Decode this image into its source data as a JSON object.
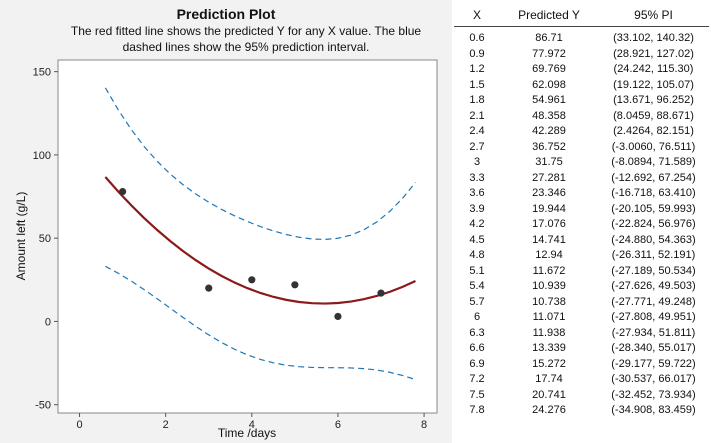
{
  "chart_data": {
    "type": "scatter",
    "title": "Prediction Plot",
    "subtitle_lines": [
      "The red fitted line shows the predicted Y for any X value. The blue",
      "dashed lines show the 95% prediction interval."
    ],
    "xlabel": "Time /days",
    "ylabel": "Amount left (g/L)",
    "xlim": [
      -0.5,
      8.3
    ],
    "ylim": [
      -55,
      157
    ],
    "x_ticks": [
      0,
      2,
      4,
      6,
      8
    ],
    "y_ticks": [
      -50,
      0,
      50,
      100,
      150
    ],
    "grid": false,
    "colors": {
      "fit": "#8b1a1a",
      "interval": "#1f77b4",
      "points": "#333333"
    },
    "observed_points": [
      {
        "x": 1,
        "y": 78
      },
      {
        "x": 3,
        "y": 20
      },
      {
        "x": 4,
        "y": 25
      },
      {
        "x": 5,
        "y": 22
      },
      {
        "x": 6,
        "y": 3
      },
      {
        "x": 7,
        "y": 17
      }
    ],
    "fit_line": {
      "x": [
        0.6,
        0.9,
        1.2,
        1.5,
        1.8,
        2.1,
        2.4,
        2.7,
        3,
        3.3,
        3.6,
        3.9,
        4.2,
        4.5,
        4.8,
        5.1,
        5.4,
        5.7,
        6,
        6.3,
        6.6,
        6.9,
        7.2,
        7.5,
        7.8
      ],
      "y": [
        86.71,
        77.972,
        69.769,
        62.098,
        54.961,
        48.358,
        42.289,
        36.752,
        31.75,
        27.281,
        23.346,
        19.944,
        17.076,
        14.741,
        12.94,
        11.672,
        10.939,
        10.738,
        11.071,
        11.938,
        13.339,
        15.272,
        17.74,
        20.741,
        24.276
      ]
    },
    "pi_lower": [
      33.102,
      28.921,
      24.242,
      19.122,
      13.671,
      8.0459,
      2.4264,
      -3.006,
      -8.0894,
      -12.692,
      -16.718,
      -20.105,
      -22.824,
      -24.88,
      -26.311,
      -27.189,
      -27.626,
      -27.771,
      -27.808,
      -27.934,
      -28.34,
      -29.177,
      -30.537,
      -32.452,
      -34.908
    ],
    "pi_upper": [
      140.32,
      127.02,
      115.3,
      105.07,
      96.252,
      88.671,
      82.151,
      76.511,
      71.589,
      67.254,
      63.41,
      59.993,
      56.976,
      54.363,
      52.191,
      50.534,
      49.503,
      49.248,
      49.951,
      51.811,
      55.017,
      59.722,
      66.017,
      73.934,
      83.459
    ]
  },
  "table": {
    "headers": [
      "X",
      "Predicted Y",
      "95% PI"
    ],
    "rows": [
      [
        "0.6",
        "86.71",
        "(33.102, 140.32)"
      ],
      [
        "0.9",
        "77.972",
        "(28.921, 127.02)"
      ],
      [
        "1.2",
        "69.769",
        "(24.242, 115.30)"
      ],
      [
        "1.5",
        "62.098",
        "(19.122, 105.07)"
      ],
      [
        "1.8",
        "54.961",
        "(13.671, 96.252)"
      ],
      [
        "2.1",
        "48.358",
        "(8.0459, 88.671)"
      ],
      [
        "2.4",
        "42.289",
        "(2.4264, 82.151)"
      ],
      [
        "2.7",
        "36.752",
        "(-3.0060, 76.511)"
      ],
      [
        "3",
        "31.75",
        "(-8.0894, 71.589)"
      ],
      [
        "3.3",
        "27.281",
        "(-12.692, 67.254)"
      ],
      [
        "3.6",
        "23.346",
        "(-16.718, 63.410)"
      ],
      [
        "3.9",
        "19.944",
        "(-20.105, 59.993)"
      ],
      [
        "4.2",
        "17.076",
        "(-22.824, 56.976)"
      ],
      [
        "4.5",
        "14.741",
        "(-24.880, 54.363)"
      ],
      [
        "4.8",
        "12.94",
        "(-26.311, 52.191)"
      ],
      [
        "5.1",
        "11.672",
        "(-27.189, 50.534)"
      ],
      [
        "5.4",
        "10.939",
        "(-27.626, 49.503)"
      ],
      [
        "5.7",
        "10.738",
        "(-27.771, 49.248)"
      ],
      [
        "6",
        "11.071",
        "(-27.808, 49.951)"
      ],
      [
        "6.3",
        "11.938",
        "(-27.934, 51.811)"
      ],
      [
        "6.6",
        "13.339",
        "(-28.340, 55.017)"
      ],
      [
        "6.9",
        "15.272",
        "(-29.177, 59.722)"
      ],
      [
        "7.2",
        "17.74",
        "(-30.537, 66.017)"
      ],
      [
        "7.5",
        "20.741",
        "(-32.452, 73.934)"
      ],
      [
        "7.8",
        "24.276",
        "(-34.908, 83.459)"
      ]
    ]
  }
}
